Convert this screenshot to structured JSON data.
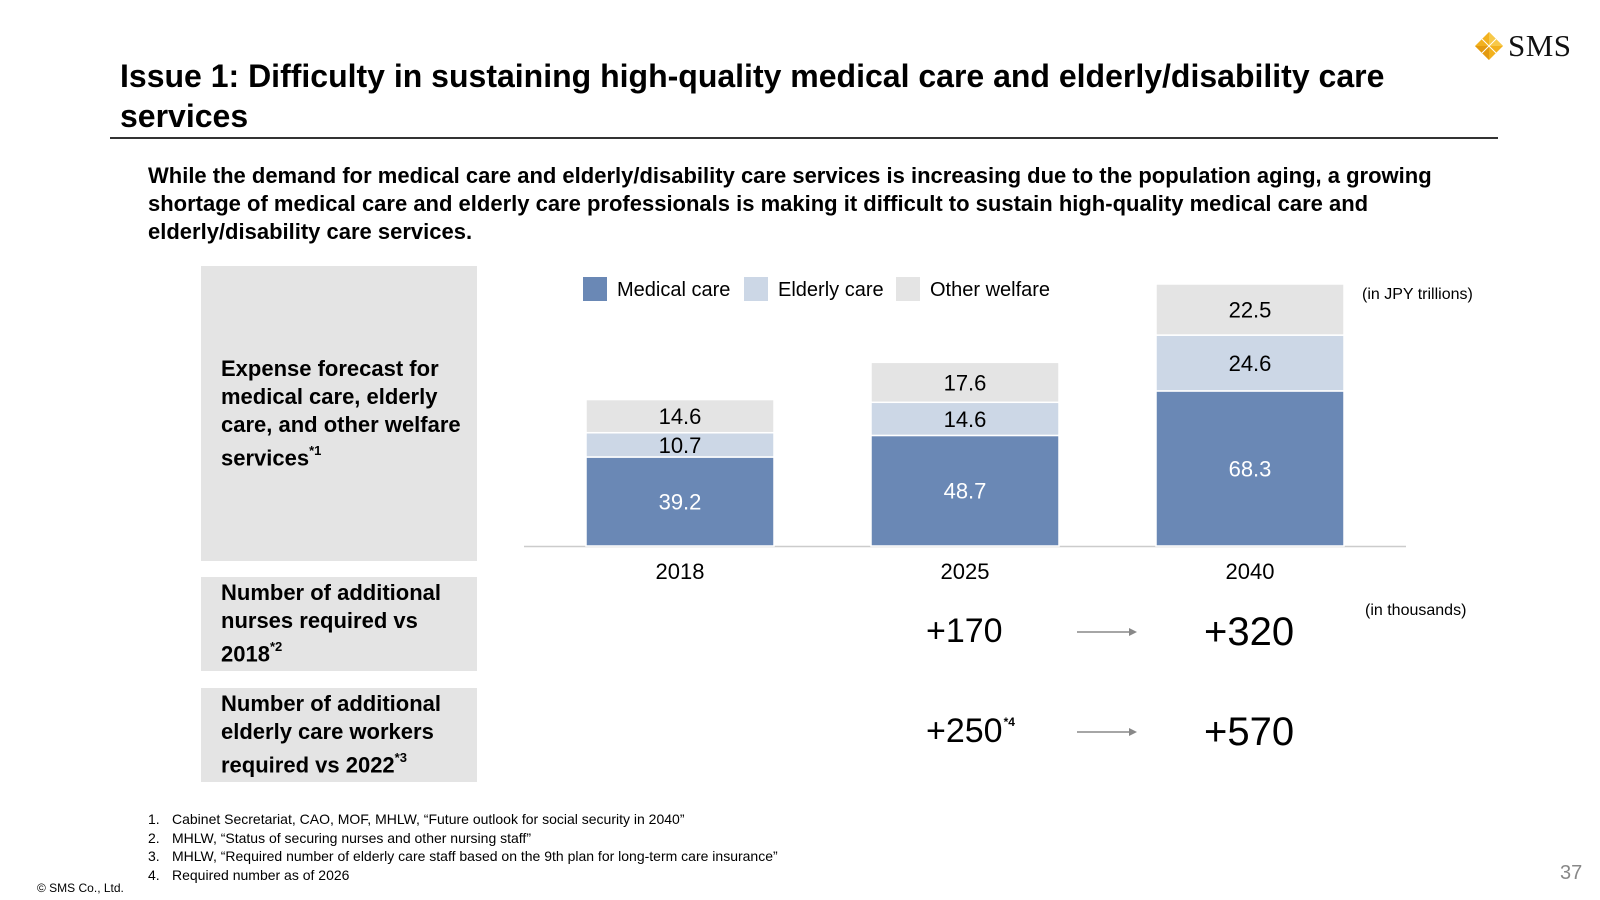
{
  "logo": {
    "text": "SMS",
    "icon": "diamond-logo-icon"
  },
  "title": "Issue 1: Difficulty in sustaining high-quality medical care and elderly/disability care services",
  "lead": "While the demand for medical care and elderly/disability care services is increasing due to the population aging, a growing shortage of medical care and elderly care professionals is making it difficult to sustain high-quality medical care and elderly/disability care services.",
  "rows": {
    "expense": {
      "label": "Expense forecast for medical care, elderly care, and other welfare services",
      "note": "*1"
    },
    "nurses": {
      "label": "Number of additional nurses required vs 2018",
      "note": "*2"
    },
    "care_workers": {
      "label": "Number of additional elderly care workers required vs 2022",
      "note": "*3"
    }
  },
  "units": {
    "expense": "(in JPY trillions)",
    "workers": "(in thousands)"
  },
  "workers": {
    "nurses": {
      "v2025": "+170",
      "v2040": "+320"
    },
    "care": {
      "v2025": "+250",
      "v2025_note": "*4",
      "v2040": "+570"
    }
  },
  "chart_data": {
    "type": "bar",
    "stacked": true,
    "title": "",
    "categories": [
      "2018",
      "2025",
      "2040"
    ],
    "series": [
      {
        "name": "Medical care",
        "values": [
          39.2,
          48.7,
          68.3
        ],
        "color": "#6a88b5",
        "label_color": "#ffffff"
      },
      {
        "name": "Elderly care",
        "values": [
          10.7,
          14.6,
          24.6
        ],
        "color": "#ccd7e6",
        "label_color": "#000000"
      },
      {
        "name": "Other welfare",
        "values": [
          14.6,
          17.6,
          22.5
        ],
        "color": "#e4e4e4",
        "label_color": "#000000"
      }
    ],
    "ylabel": "(in JPY trillions)",
    "ylim": [
      0,
      115.4
    ],
    "grid": false,
    "legend": "top"
  },
  "colors": {
    "axis": "#cccccc",
    "arrow": "#888888",
    "label_box": "#e4e4e4",
    "page_number": "#888888"
  },
  "footnotes": [
    {
      "num": "1.",
      "text": "Cabinet Secretariat, CAO, MOF, MHLW, “Future outlook for social security in 2040”"
    },
    {
      "num": "2.",
      "text": "MHLW, “Status of securing nurses and other nursing staff”"
    },
    {
      "num": "3.",
      "text": "MHLW, “Required number of elderly care staff based on the 9th plan for long-term care insurance”"
    },
    {
      "num": "4.",
      "text": "Required number as of 2026"
    }
  ],
  "copyright": "© SMS Co., Ltd.",
  "page_number": "37"
}
